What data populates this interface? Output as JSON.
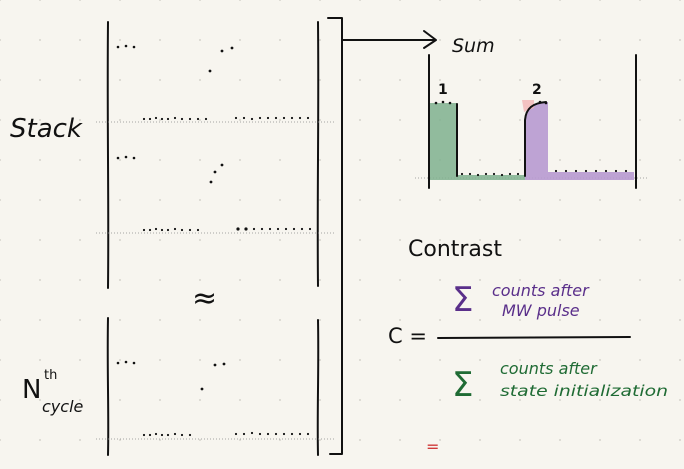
{
  "diagram": {
    "left_labels": {
      "stack": "Stack",
      "nth_cycle_base": "N",
      "nth_cycle_sup": "th",
      "nth_cycle_sub": "cycle"
    },
    "approx_symbol": "≈",
    "sum_label": "Sum",
    "peak_labels": [
      "1",
      "2"
    ],
    "contrast": {
      "title": "Contrast",
      "c_eq": "C =",
      "numerator": {
        "sigma": "Σ",
        "line1": "counts after",
        "line2": "MW pulse"
      },
      "denominator": {
        "sigma": "Σ",
        "line1": "counts after",
        "line2": "state initialization"
      }
    },
    "stray_mark": "=",
    "colors": {
      "ink": "#111111",
      "peak1": "#7fb08e",
      "peak2": "#b79ad0",
      "numerator": "#5a2f8a",
      "denominator": "#1f6b34",
      "stray_mark": "#d03a3a",
      "reference_line": "#8a8a8a"
    }
  }
}
